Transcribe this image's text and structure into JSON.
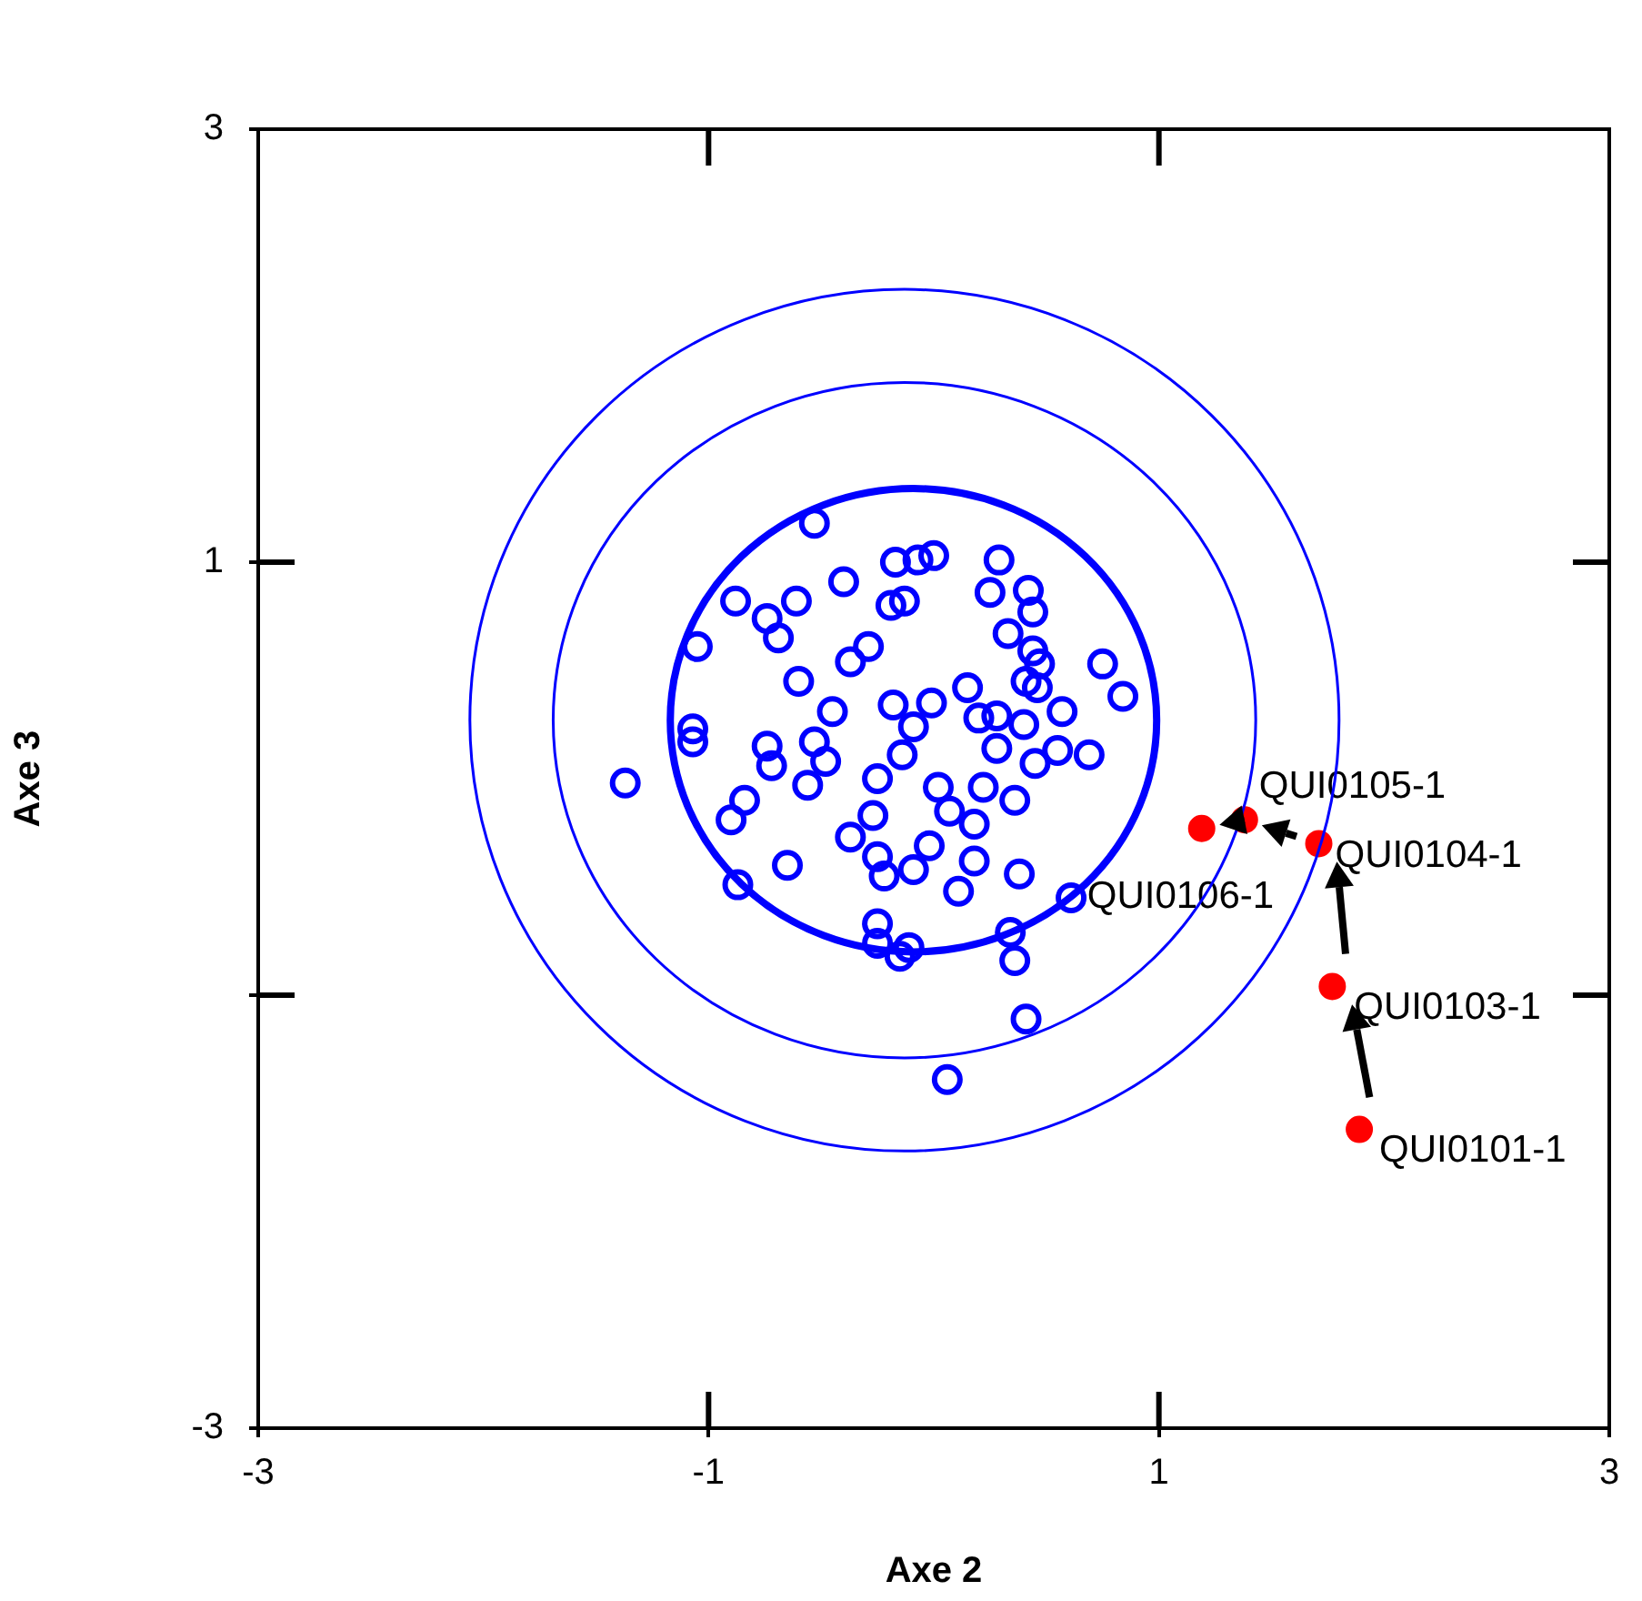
{
  "chart_data": {
    "type": "scatter",
    "xlabel": "Axe 2",
    "ylabel": "Axe 3",
    "xlim": [
      -3,
      3
    ],
    "ylim": [
      -3,
      3
    ],
    "xticks": [
      -3,
      -1,
      1,
      3
    ],
    "yticks": [
      -3,
      {
        "value": -1,
        "label": null
      },
      1,
      3
    ],
    "marker": "circle",
    "series": [
      {
        "color": "#0000ff",
        "x": [
          -0.53,
          -0.88,
          -0.74,
          -0.61,
          -0.69,
          -0.4,
          -0.19,
          -0.17,
          -0.07,
          0.0,
          -0.13,
          -1.05,
          -0.6,
          -0.37,
          -0.29,
          -1.07,
          -1.07,
          -1.37,
          -0.45,
          -0.74,
          -0.72,
          -0.53,
          -0.56,
          -0.48,
          -0.84,
          -0.9,
          -0.87,
          -0.65,
          -0.25,
          -0.27,
          -0.37,
          -0.25,
          -0.22,
          -0.18,
          -0.14,
          -0.25,
          -0.25,
          -0.15,
          -0.11,
          0.29,
          0.25,
          0.42,
          0.44,
          0.33,
          0.44,
          0.47,
          0.41,
          0.46,
          0.75,
          0.84,
          0.57,
          0.4,
          0.28,
          0.2,
          0.15,
          -0.01,
          -0.09,
          0.28,
          0.45,
          0.55,
          0.69,
          0.02,
          0.07,
          0.22,
          0.36,
          0.18,
          0.18,
          -0.02,
          -0.09,
          0.11,
          0.38,
          0.61,
          0.34,
          0.36,
          0.41,
          0.06
        ],
        "values": [
          1.18,
          0.82,
          0.74,
          0.82,
          0.65,
          0.91,
          0.8,
          1.0,
          1.01,
          1.03,
          0.82,
          0.61,
          0.45,
          0.54,
          0.61,
          0.23,
          0.17,
          -0.02,
          0.31,
          0.15,
          0.06,
          0.17,
          -0.03,
          0.08,
          -0.1,
          -0.19,
          -0.49,
          -0.4,
          0.0,
          -0.17,
          -0.27,
          -0.36,
          -0.45,
          0.34,
          0.11,
          -0.67,
          -0.76,
          -0.82,
          -0.78,
          1.01,
          0.86,
          0.87,
          0.77,
          0.67,
          0.59,
          0.53,
          0.45,
          0.42,
          0.53,
          0.38,
          0.31,
          0.25,
          0.29,
          0.28,
          0.42,
          0.35,
          0.24,
          0.14,
          0.07,
          0.13,
          0.11,
          -0.04,
          -0.15,
          -0.04,
          -0.1,
          -0.21,
          -0.38,
          -0.31,
          -0.42,
          -0.52,
          -0.44,
          -0.55,
          -0.71,
          -0.84,
          -1.11,
          -1.39
        ]
      },
      {
        "color": "#ff0000",
        "x": [
          1.89,
          1.77,
          1.71,
          1.38,
          1.19
        ],
        "values": [
          -1.62,
          -0.96,
          -0.3,
          -0.19,
          -0.23
        ]
      }
    ],
    "annotations": [
      {
        "text": "QUI0101-1",
        "x": 1.89,
        "y": -1.62
      },
      {
        "text": "QUI0103-1",
        "x": 1.77,
        "y": -0.96
      },
      {
        "text": "QUI0104-1",
        "x": 1.71,
        "y": -0.3
      },
      {
        "text": "QUI0105-1",
        "x": 1.38,
        "y": -0.19
      },
      {
        "text": "QUI0106-1",
        "x": 1.19,
        "y": -0.23
      }
    ]
  }
}
